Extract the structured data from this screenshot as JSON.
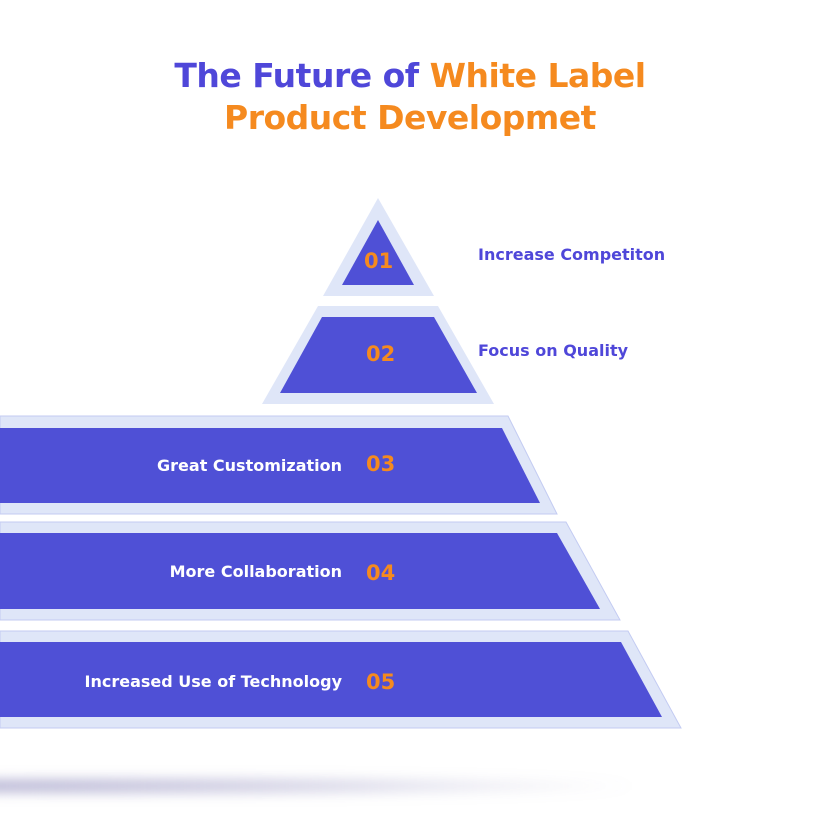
{
  "title": {
    "part1": "The Future of ",
    "part2": "White Label",
    "line2": "Product Developmet"
  },
  "tiers": [
    {
      "number": "01",
      "label": "Increase Competiton"
    },
    {
      "number": "02",
      "label": "Focus on Quality"
    },
    {
      "number": "03",
      "label": "Great Customization"
    },
    {
      "number": "04",
      "label": "More Collaboration"
    },
    {
      "number": "05",
      "label": "Increased Use of Technology"
    }
  ],
  "colors": {
    "primary": "#4f50d6",
    "border": "#dfe6f8",
    "accent": "#f58a1f",
    "title_blue": "#4f47d9"
  }
}
